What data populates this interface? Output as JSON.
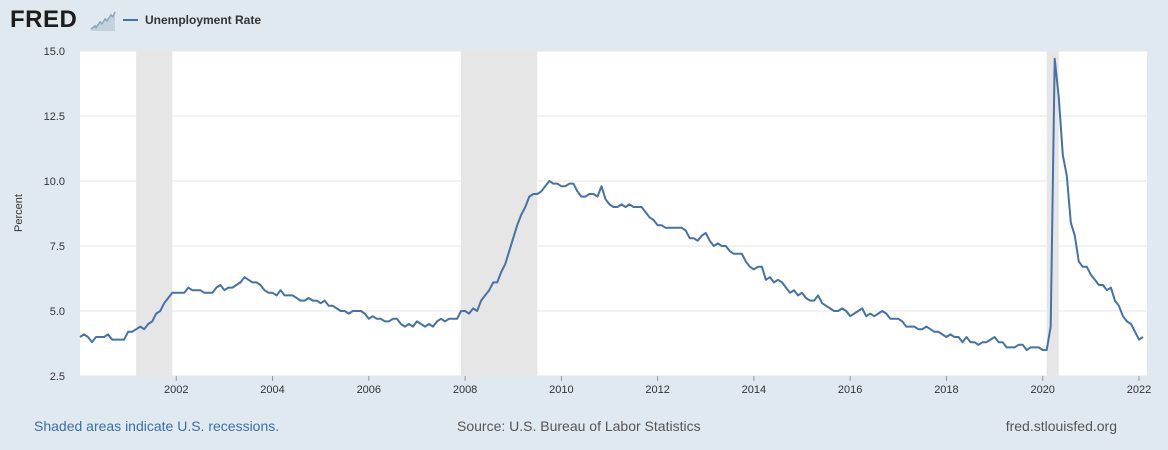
{
  "header": {
    "logo_text": "FRED",
    "logo_icon": "trend-line-icon",
    "legend_label": "Unemployment Rate"
  },
  "footer": {
    "recessions_note": "Shaded areas indicate U.S. recessions.",
    "source": "Source: U.S. Bureau of Labor Statistics",
    "site": "fred.stlouisfed.org"
  },
  "chart_data": {
    "type": "line",
    "title": "",
    "xlabel": "",
    "ylabel": "Percent",
    "series": [
      {
        "name": "Unemployment Rate",
        "color": "#4572a7",
        "x_start": "2000-01",
        "frequency": "monthly",
        "values": [
          4.0,
          4.1,
          4.0,
          3.8,
          4.0,
          4.0,
          4.0,
          4.1,
          3.9,
          3.9,
          3.9,
          3.9,
          4.2,
          4.2,
          4.3,
          4.4,
          4.3,
          4.5,
          4.6,
          4.9,
          5.0,
          5.3,
          5.5,
          5.7,
          5.7,
          5.7,
          5.7,
          5.9,
          5.8,
          5.8,
          5.8,
          5.7,
          5.7,
          5.7,
          5.9,
          6.0,
          5.8,
          5.9,
          5.9,
          6.0,
          6.1,
          6.3,
          6.2,
          6.1,
          6.1,
          6.0,
          5.8,
          5.7,
          5.7,
          5.6,
          5.8,
          5.6,
          5.6,
          5.6,
          5.5,
          5.4,
          5.4,
          5.5,
          5.4,
          5.4,
          5.3,
          5.4,
          5.2,
          5.2,
          5.1,
          5.0,
          5.0,
          4.9,
          5.0,
          5.0,
          5.0,
          4.9,
          4.7,
          4.8,
          4.7,
          4.7,
          4.6,
          4.6,
          4.7,
          4.7,
          4.5,
          4.4,
          4.5,
          4.4,
          4.6,
          4.5,
          4.4,
          4.5,
          4.4,
          4.6,
          4.7,
          4.6,
          4.7,
          4.7,
          4.7,
          5.0,
          5.0,
          4.9,
          5.1,
          5.0,
          5.4,
          5.6,
          5.8,
          6.1,
          6.1,
          6.5,
          6.8,
          7.3,
          7.8,
          8.3,
          8.7,
          9.0,
          9.4,
          9.5,
          9.5,
          9.6,
          9.8,
          10.0,
          9.9,
          9.9,
          9.8,
          9.8,
          9.9,
          9.9,
          9.6,
          9.4,
          9.4,
          9.5,
          9.5,
          9.4,
          9.8,
          9.3,
          9.1,
          9.0,
          9.0,
          9.1,
          9.0,
          9.1,
          9.0,
          9.0,
          9.0,
          8.8,
          8.6,
          8.5,
          8.3,
          8.3,
          8.2,
          8.2,
          8.2,
          8.2,
          8.2,
          8.1,
          7.8,
          7.8,
          7.7,
          7.9,
          8.0,
          7.7,
          7.5,
          7.6,
          7.5,
          7.5,
          7.3,
          7.2,
          7.2,
          7.2,
          6.9,
          6.7,
          6.6,
          6.7,
          6.7,
          6.2,
          6.3,
          6.1,
          6.2,
          6.1,
          5.9,
          5.7,
          5.8,
          5.6,
          5.7,
          5.5,
          5.4,
          5.4,
          5.6,
          5.3,
          5.2,
          5.1,
          5.0,
          5.0,
          5.1,
          5.0,
          4.8,
          4.9,
          5.0,
          5.1,
          4.8,
          4.9,
          4.8,
          4.9,
          5.0,
          4.9,
          4.7,
          4.7,
          4.7,
          4.6,
          4.4,
          4.4,
          4.4,
          4.3,
          4.3,
          4.4,
          4.3,
          4.2,
          4.2,
          4.1,
          4.0,
          4.1,
          4.0,
          4.0,
          3.8,
          4.0,
          3.8,
          3.8,
          3.7,
          3.8,
          3.8,
          3.9,
          4.0,
          3.8,
          3.8,
          3.6,
          3.6,
          3.6,
          3.7,
          3.7,
          3.5,
          3.6,
          3.6,
          3.6,
          3.5,
          3.5,
          4.4,
          14.7,
          13.2,
          11.0,
          10.2,
          8.4,
          7.9,
          6.9,
          6.7,
          6.7,
          6.4,
          6.2,
          6.0,
          6.0,
          5.8,
          5.9,
          5.4,
          5.2,
          4.8,
          4.6,
          4.5,
          4.2,
          3.9,
          4.0
        ]
      }
    ],
    "recessions": [
      {
        "start": "2001-03",
        "end": "2001-11"
      },
      {
        "start": "2007-12",
        "end": "2009-06"
      },
      {
        "start": "2020-02",
        "end": "2020-04"
      }
    ],
    "x_ticks": [
      "2002",
      "2004",
      "2006",
      "2008",
      "2010",
      "2012",
      "2014",
      "2016",
      "2018",
      "2020",
      "2022"
    ],
    "y_ticks": [
      "2.5",
      "5.0",
      "7.5",
      "10.0",
      "12.5",
      "15.0"
    ],
    "ylim": [
      2.5,
      15.0
    ],
    "xlim": [
      "2000-01",
      "2022-03"
    ],
    "grid": true,
    "legend_position": "top-left"
  }
}
